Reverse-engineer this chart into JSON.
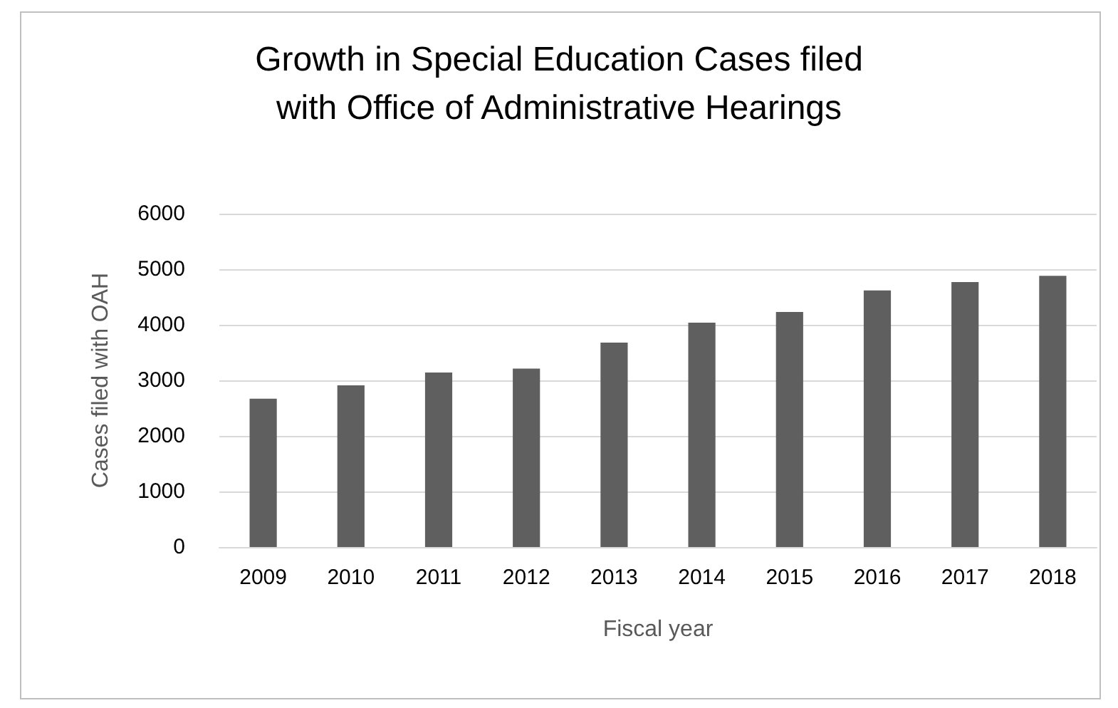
{
  "chart_data": {
    "type": "bar",
    "title": "Growth in Special Education Cases filed\nwith Office of Administrative Hearings",
    "xlabel": "Fiscal year",
    "ylabel": "Cases filed with OAH",
    "categories": [
      "2009",
      "2010",
      "2011",
      "2012",
      "2013",
      "2014",
      "2015",
      "2016",
      "2017",
      "2018"
    ],
    "values": [
      2670,
      2910,
      3140,
      3210,
      3680,
      4040,
      4230,
      4620,
      4770,
      4880
    ],
    "color": "#5f5f5f",
    "ylim": [
      0,
      6000
    ],
    "yticks": [
      0,
      1000,
      2000,
      3000,
      4000,
      5000,
      6000
    ],
    "grid": "y"
  }
}
